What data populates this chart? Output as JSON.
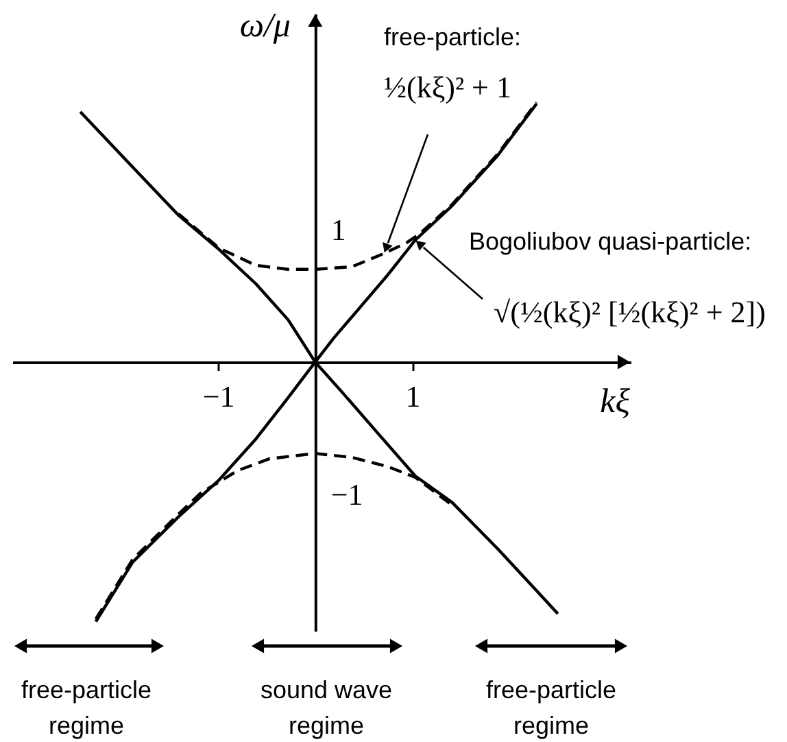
{
  "chart_data": {
    "type": "line",
    "xlabel": "kξ",
    "ylabel": "ω/μ",
    "xlim": [
      -3.12,
      3.25
    ],
    "ylim": [
      -2.03,
      2.63
    ],
    "xticks": [
      -1,
      1
    ],
    "yticks": [
      -1,
      1
    ],
    "series": [
      {
        "color": "#000000",
        "line_style": "solid",
        "x": [
          -2.42,
          -1.93,
          -1.41,
          -0.99,
          -0.61,
          -0.28,
          -0.14,
          0,
          0.19,
          0.47,
          0.75,
          1.03,
          1.41,
          1.88,
          2.28
        ],
        "values": [
          1.89,
          1.51,
          1.11,
          0.85,
          0.59,
          0.32,
          0.16,
          0,
          0.18,
          0.42,
          0.66,
          0.92,
          1.18,
          1.56,
          1.95
        ]
      },
      {
        "color": "#000000",
        "line_style": "solid",
        "x": [
          -2.26,
          -1.88,
          -1.41,
          -0.99,
          -0.61,
          -0.28,
          0,
          0.28,
          0.66,
          1.03,
          1.41,
          1.88,
          2.5
        ],
        "values": [
          -1.96,
          -1.51,
          -1.17,
          -0.89,
          -0.58,
          -0.27,
          0,
          -0.23,
          -0.55,
          -0.86,
          -1.06,
          -1.41,
          -1.9
        ]
      },
      {
        "color": "#000000",
        "line_style": "dashed",
        "x": [
          -1.41,
          -0.99,
          -0.61,
          -0.28,
          0,
          0.38,
          0.71,
          0.94,
          1.08,
          1.41,
          1.88,
          2.28
        ],
        "values": [
          1.12,
          0.86,
          0.73,
          0.7,
          0.7,
          0.72,
          0.82,
          0.9,
          0.97,
          1.19,
          1.57,
          1.96
        ]
      },
      {
        "color": "#000000",
        "line_style": "dashed",
        "x": [
          -2.26,
          -1.88,
          -1.41,
          -1.18,
          -0.8,
          -0.47,
          0,
          0.38,
          0.75,
          1.03,
          1.41
        ],
        "values": [
          -1.94,
          -1.49,
          -1.15,
          -0.99,
          -0.82,
          -0.73,
          -0.69,
          -0.72,
          -0.79,
          -0.87,
          -1.08
        ]
      }
    ],
    "annotations": [
      "free-particle:",
      {
        "text": "½(kξ)² + 1",
        "x": 0.71,
        "y": 0.82
      },
      "Bogoliubov quasi-particle:",
      {
        "text": "√(½(kξ)² [½(kξ)² + 2])",
        "x": 1.03,
        "y": 0.92
      },
      "free-particle\nregime",
      "sound wave\nregime",
      "free-particle\nregime"
    ]
  }
}
